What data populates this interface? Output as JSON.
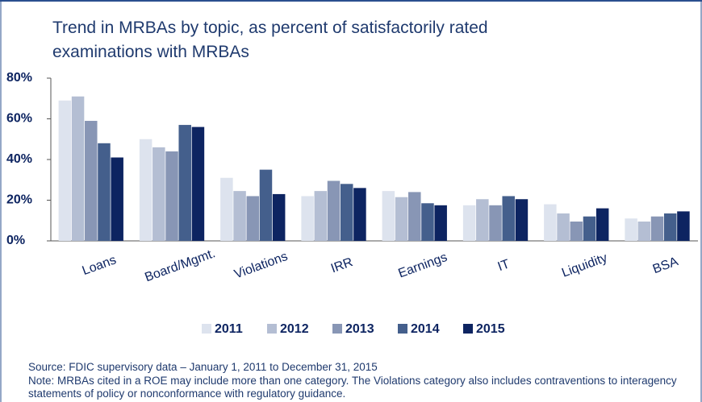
{
  "chart_data": {
    "type": "bar",
    "title": "Trend in MRBAs by topic, as percent of satisfactorily rated examinations with MRBAs",
    "categories": [
      "Loans",
      "Board/Mgmt.",
      "Violations",
      "IRR",
      "Earnings",
      "IT",
      "Liquidity",
      "BSA"
    ],
    "series": [
      {
        "name": "2011",
        "color": "#dde3ee",
        "values": [
          69,
          50,
          31,
          22,
          24.5,
          17.5,
          18,
          11
        ]
      },
      {
        "name": "2012",
        "color": "#b4bed3",
        "values": [
          71,
          46,
          24.5,
          24.5,
          21.5,
          20.5,
          13.5,
          9.5
        ]
      },
      {
        "name": "2013",
        "color": "#8896b5",
        "values": [
          59,
          44,
          22,
          29.5,
          24,
          17.5,
          9.5,
          12
        ]
      },
      {
        "name": "2014",
        "color": "#445f8c",
        "values": [
          48,
          57,
          35,
          28,
          18.5,
          22,
          12,
          13.5
        ]
      },
      {
        "name": "2015",
        "color": "#0d2461",
        "values": [
          41,
          56,
          23,
          26,
          17.5,
          20.5,
          16,
          14.5
        ]
      }
    ],
    "ylim": [
      0,
      80
    ],
    "yticks": [
      {
        "value": 0,
        "label": "0%"
      },
      {
        "value": 20,
        "label": "20%"
      },
      {
        "value": 40,
        "label": "40%"
      },
      {
        "value": 60,
        "label": "60%"
      },
      {
        "value": 80,
        "label": "80%"
      }
    ],
    "legend": "bottom",
    "source": "Source: FDIC supervisory data – January 1, 2011 to December 31, 2015",
    "note": "Note: MRBAs cited in a ROE may include more than one category. The Violations category also includes contraventions to interagency statements of policy or nonconformance with regulatory guidance."
  }
}
